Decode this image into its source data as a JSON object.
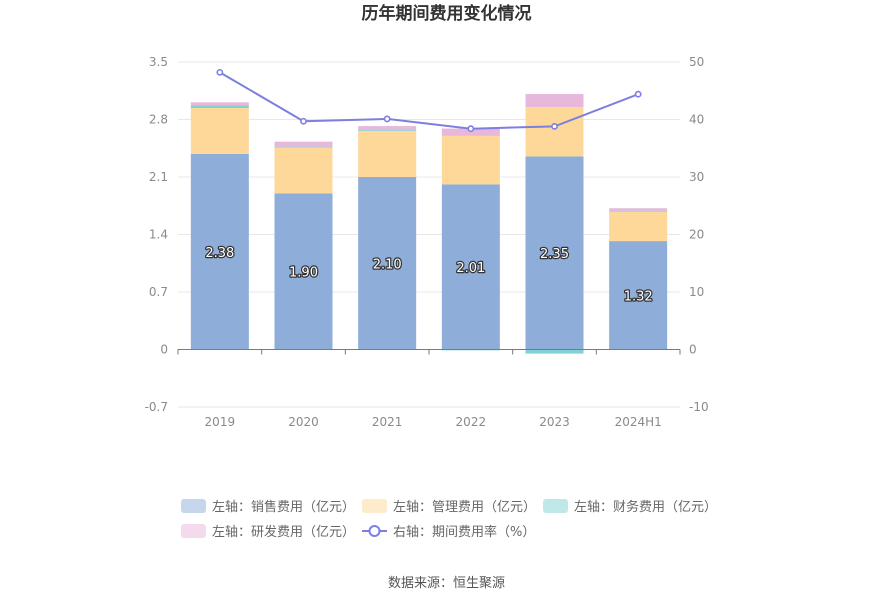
{
  "chart_data": {
    "type": "bar",
    "title": "历年期间费用变化情况",
    "categories": [
      "2019",
      "2020",
      "2021",
      "2022",
      "2023",
      "2024H1"
    ],
    "y_left": {
      "min": -0.7,
      "max": 3.5,
      "ticks": [
        "-0.7",
        "0",
        "0.7",
        "1.4",
        "2.1",
        "2.8",
        "3.5"
      ]
    },
    "y_right": {
      "min": -10,
      "max": 50,
      "ticks": [
        "-10",
        "0",
        "10",
        "20",
        "30",
        "40",
        "50"
      ]
    },
    "series": [
      {
        "name": "左轴：销售费用（亿元）",
        "axis": "left",
        "kind": "bar",
        "color": "#8eadd9",
        "values": [
          2.38,
          1.9,
          2.1,
          2.01,
          2.35,
          1.32
        ],
        "labels": [
          "2.38",
          "1.90",
          "2.10",
          "2.01",
          "2.35",
          "1.32"
        ]
      },
      {
        "name": "左轴：管理费用（亿元）",
        "axis": "left",
        "kind": "bar",
        "color": "#fdd899",
        "values": [
          0.56,
          0.56,
          0.56,
          0.59,
          0.6,
          0.36
        ]
      },
      {
        "name": "左轴：财务费用（亿元）",
        "axis": "left",
        "kind": "bar",
        "color": "#7fd3d3",
        "values": [
          0.03,
          0.01,
          0.01,
          -0.01,
          -0.05,
          0.01
        ]
      },
      {
        "name": "左轴：研发费用（亿元）",
        "axis": "left",
        "kind": "bar",
        "color": "#e8b8dc",
        "values": [
          0.04,
          0.06,
          0.05,
          0.09,
          0.16,
          0.03
        ]
      },
      {
        "name": "右轴：期间费用率（%）",
        "axis": "right",
        "kind": "line",
        "color": "#7b7fe0",
        "values": [
          48.2,
          39.7,
          40.1,
          38.4,
          38.8,
          44.4
        ]
      }
    ],
    "grid": true,
    "legend_position": "bottom",
    "source": "数据来源：恒生聚源"
  }
}
